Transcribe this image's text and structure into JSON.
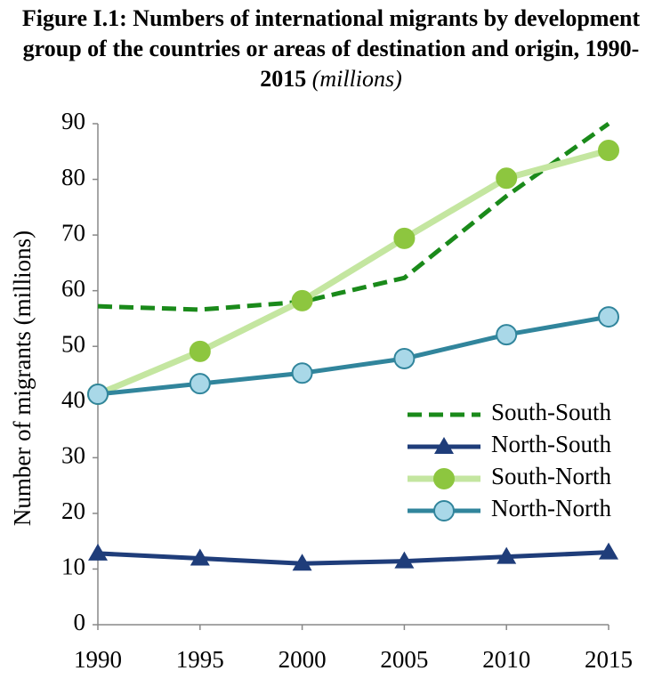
{
  "chart_data": {
    "type": "line",
    "title": "Figure I.1: Numbers of international migrants by development group of the countries or areas of destination and origin, 1990-2015",
    "subtitle": "(millions)",
    "y_label": "Number of migrants (millions)",
    "x": [
      1990,
      1995,
      2000,
      2005,
      2010,
      2015
    ],
    "xlim": [
      1990,
      2015
    ],
    "xticks": [
      1990,
      1995,
      2000,
      2005,
      2010,
      2015
    ],
    "ylim": [
      0,
      90
    ],
    "yticks": [
      0,
      10,
      20,
      30,
      40,
      50,
      60,
      70,
      80,
      90
    ],
    "grid": false,
    "legend": "center right",
    "series": [
      {
        "name": "South-South",
        "color": "#1a8a1a",
        "line_style": "dashed",
        "marker": "none",
        "values": [
          57.2,
          56.6,
          58.0,
          62.3,
          77.0,
          90.0
        ]
      },
      {
        "name": "North-South",
        "color": "#1f3d7a",
        "line_style": "solid",
        "marker": "triangle",
        "marker_color": "#1f3d7a",
        "values": [
          12.8,
          11.9,
          11.0,
          11.4,
          12.2,
          13.0
        ]
      },
      {
        "name": "South-North",
        "color": "#c4e6a0",
        "line_style": "solid",
        "marker": "circle",
        "marker_color": "#8dc63f",
        "values": [
          41.4,
          49.1,
          58.2,
          69.4,
          80.2,
          85.2
        ]
      },
      {
        "name": "North-North",
        "color": "#31859c",
        "line_style": "solid",
        "marker": "circle",
        "marker_color": "#a9d8e8",
        "values": [
          41.4,
          43.3,
          45.2,
          47.8,
          52.1,
          55.3
        ]
      }
    ]
  }
}
